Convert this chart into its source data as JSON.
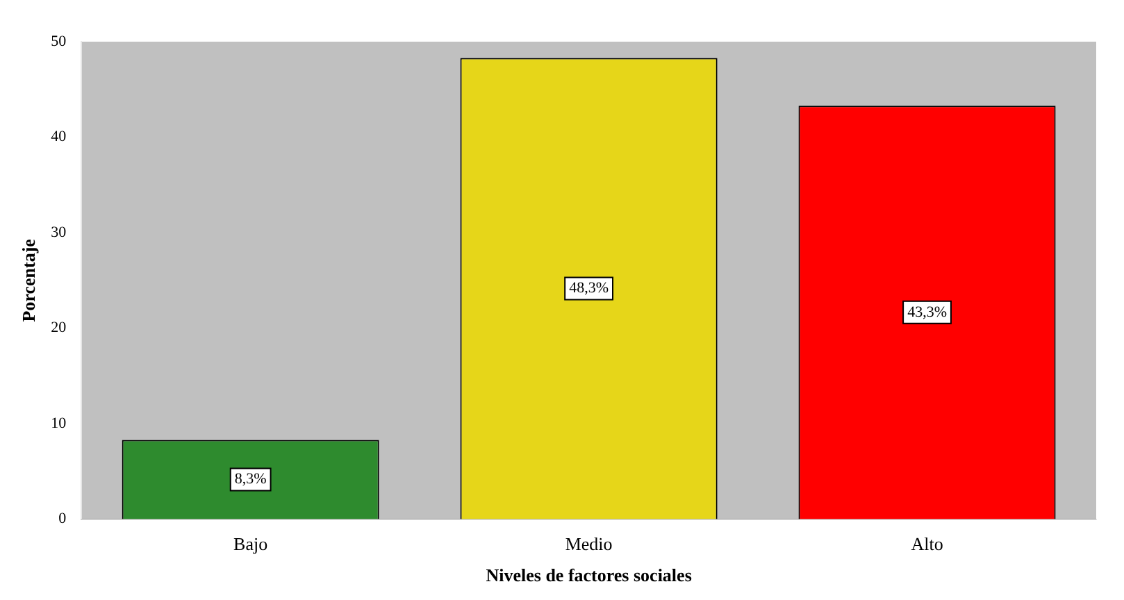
{
  "chart_data": {
    "type": "bar",
    "xlabel": "Niveles de factores sociales",
    "ylabel": "Porcentaje",
    "categories": [
      "Bajo",
      "Medio",
      "Alto"
    ],
    "values": [
      8.3,
      48.3,
      43.3
    ],
    "colors": [
      "#2e8b2e",
      "#e6d619",
      "#ff0000"
    ],
    "value_labels": [
      "8,3%",
      "48,3%",
      "43,3%"
    ],
    "ylim": [
      0,
      50
    ],
    "yticks": [
      0,
      10,
      20,
      30,
      40,
      50
    ],
    "grid": false,
    "legend": false
  }
}
